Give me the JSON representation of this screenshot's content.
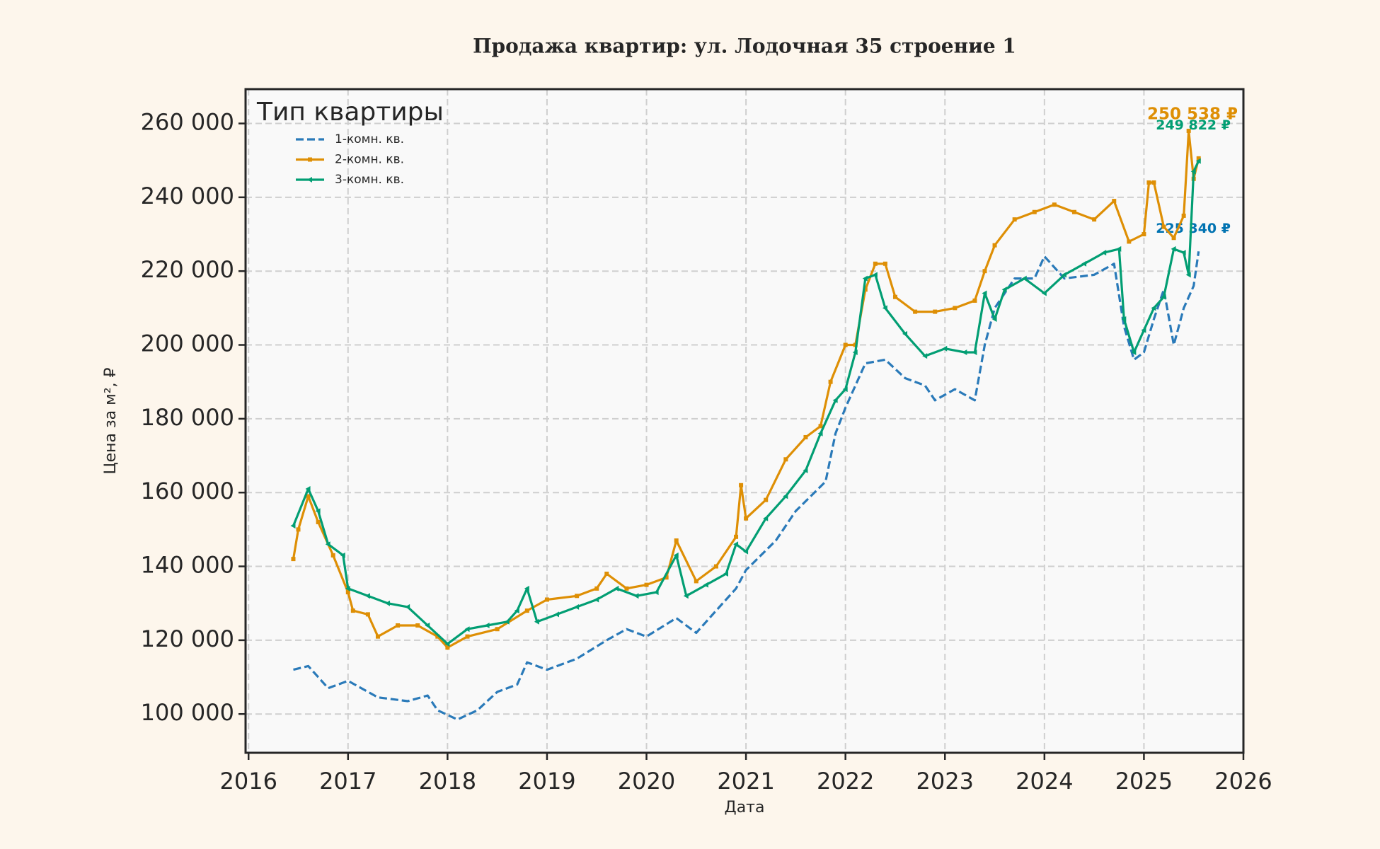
{
  "chart_data": {
    "type": "line",
    "title": "Продажа квартир: ул. Лодочная 35 строение 1",
    "x_label": "Дата",
    "y_label": "Цена за м², ₽",
    "legend_title": "Тип квартиры",
    "legend": "upper left",
    "grid": true,
    "xlim": [
      2015.97,
      2026
    ],
    "xticks": [
      2016,
      2017,
      2018,
      2019,
      2020,
      2021,
      2022,
      2023,
      2024,
      2025,
      2026
    ],
    "ylim": [
      89500,
      269300
    ],
    "yticks": [
      {
        "value": 100000,
        "label": "100 000"
      },
      {
        "value": 120000,
        "label": "120 000"
      },
      {
        "value": 140000,
        "label": "140 000"
      },
      {
        "value": 160000,
        "label": "160 000"
      },
      {
        "value": 180000,
        "label": "180 000"
      },
      {
        "value": 200000,
        "label": "200 000"
      },
      {
        "value": 220000,
        "label": "220 000"
      },
      {
        "value": 240000,
        "label": "240 000"
      },
      {
        "value": 260000,
        "label": "260 000"
      }
    ],
    "series": [
      {
        "name": "1-комн. кв.",
        "color": "#2a7ab9",
        "label_color": "#0173b2",
        "linestyle": "dashed",
        "marker": "none",
        "x": [
          2016.45,
          2016.6,
          2016.8,
          2017.0,
          2017.3,
          2017.6,
          2017.8,
          2017.9,
          2018.1,
          2018.3,
          2018.5,
          2018.7,
          2018.8,
          2019.0,
          2019.3,
          2019.6,
          2019.8,
          2020.0,
          2020.3,
          2020.5,
          2020.7,
          2020.9,
          2021.0,
          2021.3,
          2021.5,
          2021.8,
          2021.9,
          2022.0,
          2022.2,
          2022.4,
          2022.6,
          2022.8,
          2022.9,
          2023.1,
          2023.3,
          2023.4,
          2023.5,
          2023.7,
          2023.9,
          2024.0,
          2024.2,
          2024.5,
          2024.7,
          2024.8,
          2024.9,
          2025.0,
          2025.1,
          2025.2,
          2025.3,
          2025.4,
          2025.5,
          2025.55
        ],
        "values": [
          112000,
          113000,
          107000,
          109000,
          104500,
          103500,
          105000,
          101000,
          98500,
          101000,
          106000,
          108000,
          114000,
          112000,
          115000,
          120000,
          123000,
          121000,
          126000,
          122000,
          128000,
          134000,
          139000,
          147000,
          155000,
          163000,
          176000,
          183000,
          195000,
          196000,
          191000,
          189000,
          185000,
          188000,
          185000,
          200000,
          210000,
          218000,
          218000,
          224000,
          218000,
          219000,
          222000,
          205000,
          196000,
          198000,
          207000,
          215000,
          200000,
          210000,
          216000,
          225340
        ],
        "value_labels": [
          null,
          null,
          null,
          null,
          null,
          null,
          null,
          null,
          null,
          null,
          null,
          null,
          null,
          null,
          null,
          null,
          null,
          null,
          null,
          null,
          null,
          null,
          null,
          null,
          null,
          null,
          null,
          null,
          null,
          null,
          null,
          null,
          null,
          null,
          null,
          null,
          null,
          null,
          null,
          null,
          null,
          null,
          null,
          null,
          null,
          null,
          null,
          null,
          null,
          null,
          null,
          "225 340 ₽"
        ]
      },
      {
        "name": "2-комн. кв.",
        "color": "#de8f05",
        "label_color": "#de8f05",
        "linestyle": "solid",
        "marker": "square",
        "x": [
          2016.45,
          2016.5,
          2016.6,
          2016.7,
          2016.85,
          2017.0,
          2017.05,
          2017.2,
          2017.3,
          2017.5,
          2017.7,
          2017.9,
          2018.0,
          2018.2,
          2018.5,
          2018.8,
          2019.0,
          2019.3,
          2019.5,
          2019.6,
          2019.8,
          2020.0,
          2020.2,
          2020.3,
          2020.5,
          2020.7,
          2020.9,
          2020.95,
          2021.0,
          2021.2,
          2021.4,
          2021.6,
          2021.75,
          2021.85,
          2022.0,
          2022.1,
          2022.2,
          2022.3,
          2022.4,
          2022.5,
          2022.7,
          2022.9,
          2023.1,
          2023.3,
          2023.4,
          2023.5,
          2023.7,
          2023.9,
          2024.1,
          2024.3,
          2024.5,
          2024.7,
          2024.85,
          2025.0,
          2025.05,
          2025.1,
          2025.2,
          2025.3,
          2025.4,
          2025.45,
          2025.5,
          2025.55
        ],
        "values": [
          142000,
          150000,
          159000,
          152000,
          143000,
          133000,
          128000,
          127000,
          121000,
          124000,
          124000,
          121000,
          118000,
          121000,
          123000,
          128000,
          131000,
          132000,
          134000,
          138000,
          134000,
          135000,
          137000,
          147000,
          136000,
          140000,
          148000,
          162000,
          153000,
          158000,
          169000,
          175000,
          178000,
          190000,
          200000,
          200000,
          215000,
          222000,
          222000,
          213000,
          209000,
          209000,
          210000,
          212000,
          220000,
          227000,
          234000,
          236000,
          238000,
          236000,
          234000,
          239000,
          228000,
          230000,
          244000,
          244000,
          232000,
          229000,
          235000,
          258000,
          245000,
          250538
        ],
        "value_labels": [
          null,
          null,
          null,
          null,
          null,
          null,
          null,
          null,
          null,
          null,
          null,
          null,
          null,
          null,
          null,
          null,
          null,
          null,
          null,
          null,
          null,
          null,
          null,
          null,
          null,
          null,
          null,
          null,
          null,
          null,
          null,
          null,
          null,
          null,
          null,
          null,
          null,
          null,
          null,
          null,
          null,
          null,
          null,
          null,
          null,
          null,
          null,
          null,
          null,
          null,
          null,
          null,
          null,
          null,
          null,
          null,
          null,
          null,
          null,
          null,
          null,
          "250 538 ₽"
        ]
      },
      {
        "name": "3-комн. кв.",
        "color": "#029e73",
        "label_color": "#029e73",
        "linestyle": "solid",
        "marker": "triangle-left",
        "x": [
          2016.45,
          2016.6,
          2016.7,
          2016.8,
          2016.95,
          2017.0,
          2017.2,
          2017.4,
          2017.6,
          2017.8,
          2018.0,
          2018.2,
          2018.4,
          2018.6,
          2018.7,
          2018.8,
          2018.9,
          2019.1,
          2019.3,
          2019.5,
          2019.7,
          2019.9,
          2020.1,
          2020.3,
          2020.4,
          2020.6,
          2020.8,
          2020.9,
          2021.0,
          2021.2,
          2021.4,
          2021.6,
          2021.75,
          2021.9,
          2022.0,
          2022.1,
          2022.2,
          2022.3,
          2022.4,
          2022.6,
          2022.8,
          2023.0,
          2023.2,
          2023.3,
          2023.4,
          2023.5,
          2023.6,
          2023.8,
          2024.0,
          2024.2,
          2024.4,
          2024.6,
          2024.75,
          2024.8,
          2024.9,
          2025.0,
          2025.1,
          2025.2,
          2025.3,
          2025.4,
          2025.45,
          2025.5,
          2025.55
        ],
        "values": [
          151000,
          161000,
          155000,
          146000,
          143000,
          134000,
          132000,
          130000,
          129000,
          124000,
          119000,
          123000,
          124000,
          125000,
          128000,
          134000,
          125000,
          127000,
          129000,
          131000,
          134000,
          132000,
          133000,
          143000,
          132000,
          135000,
          138000,
          146000,
          144000,
          153000,
          159000,
          166000,
          176000,
          185000,
          188000,
          198000,
          218000,
          219000,
          210000,
          203000,
          197000,
          199000,
          198000,
          198000,
          214000,
          207000,
          215000,
          218000,
          214000,
          219000,
          222000,
          225000,
          226000,
          207000,
          198000,
          204000,
          210000,
          213000,
          226000,
          225000,
          219000,
          247000,
          249822
        ],
        "value_labels": [
          null,
          null,
          null,
          null,
          null,
          null,
          null,
          null,
          null,
          null,
          null,
          null,
          null,
          null,
          null,
          null,
          null,
          null,
          null,
          null,
          null,
          null,
          null,
          null,
          null,
          null,
          null,
          null,
          null,
          null,
          null,
          null,
          null,
          null,
          null,
          null,
          null,
          null,
          null,
          null,
          null,
          null,
          null,
          null,
          null,
          null,
          null,
          null,
          null,
          null,
          null,
          null,
          null,
          null,
          null,
          null,
          null,
          null,
          null,
          null,
          null,
          null,
          "249 822 ₽"
        ]
      }
    ]
  }
}
